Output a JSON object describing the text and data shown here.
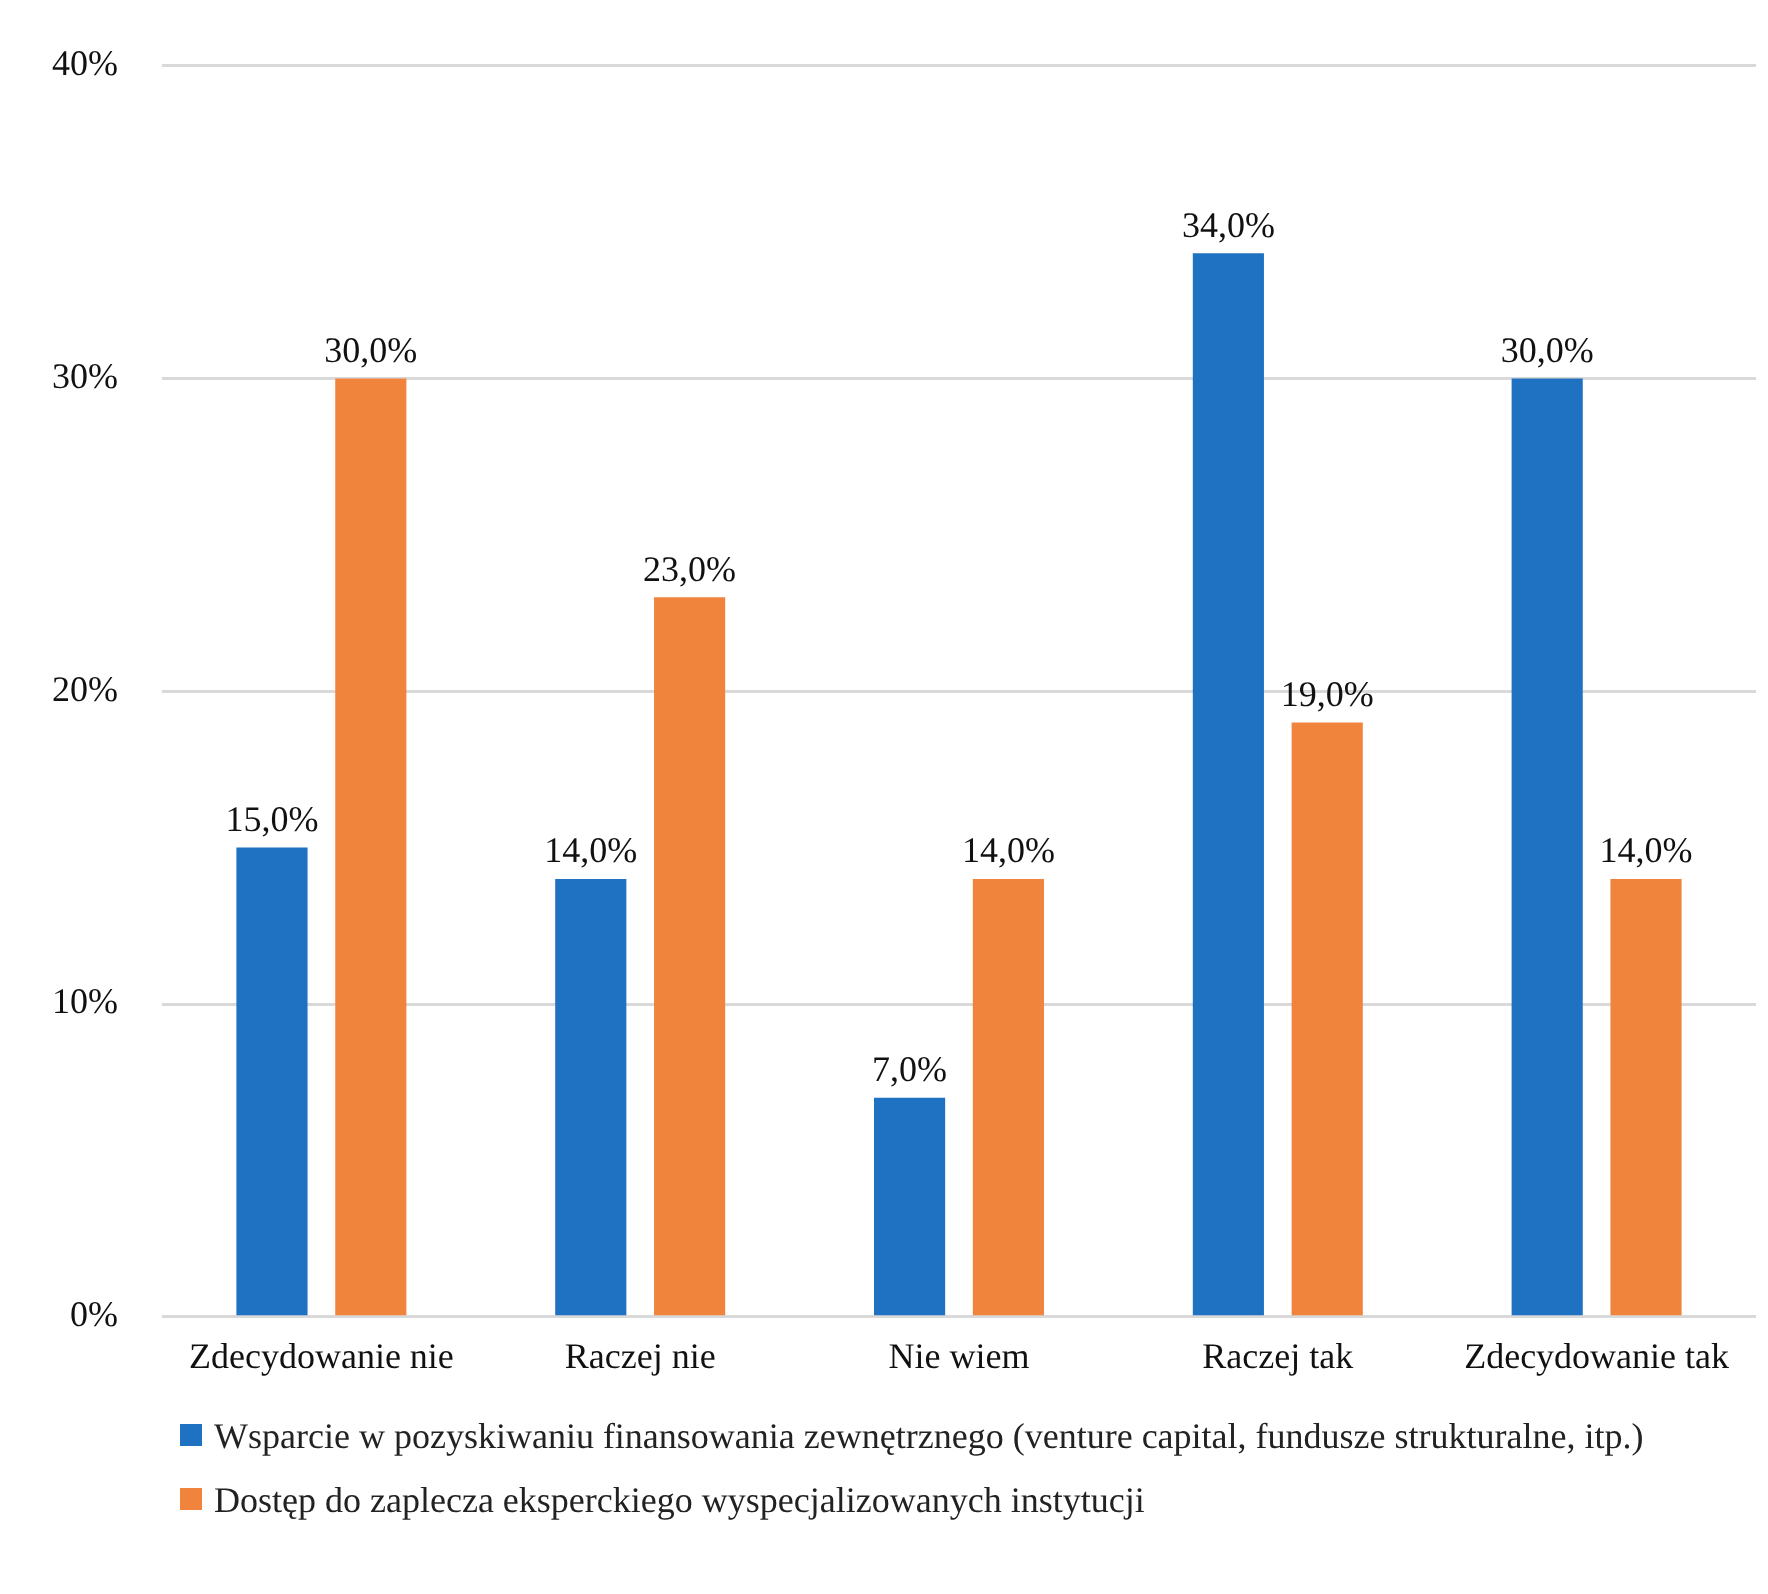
{
  "chart_data": {
    "type": "bar",
    "categories": [
      "Zdecydowanie nie",
      "Raczej nie",
      "Nie wiem",
      "Raczej tak",
      "Zdecydowanie tak"
    ],
    "series": [
      {
        "name": "Wsparcie w pozyskiwaniu finansowania zewnętrznego (venture capital, fundusze strukturalne, itp.)",
        "color": "#1f72c2",
        "values": [
          15,
          14,
          7,
          34,
          30
        ],
        "value_labels": [
          "15,0%",
          "14,0%",
          "7,0%",
          "34,0%",
          "30,0%"
        ]
      },
      {
        "name": "Dostęp do zaplecza eksperckiego wyspecjalizowanych instytucji",
        "color": "#f0843c",
        "values": [
          30,
          23,
          14,
          19,
          14
        ],
        "value_labels": [
          "30,0%",
          "23,0%",
          "14,0%",
          "19,0%",
          "14,0%"
        ]
      }
    ],
    "ylim": [
      0,
      40
    ],
    "yticks": [
      {
        "value": 0,
        "label": "0%"
      },
      {
        "value": 10,
        "label": "10%"
      },
      {
        "value": 20,
        "label": "20%"
      },
      {
        "value": 30,
        "label": "30%"
      },
      {
        "value": 40,
        "label": "40%"
      }
    ],
    "grid": "y",
    "legend": "bottom"
  }
}
